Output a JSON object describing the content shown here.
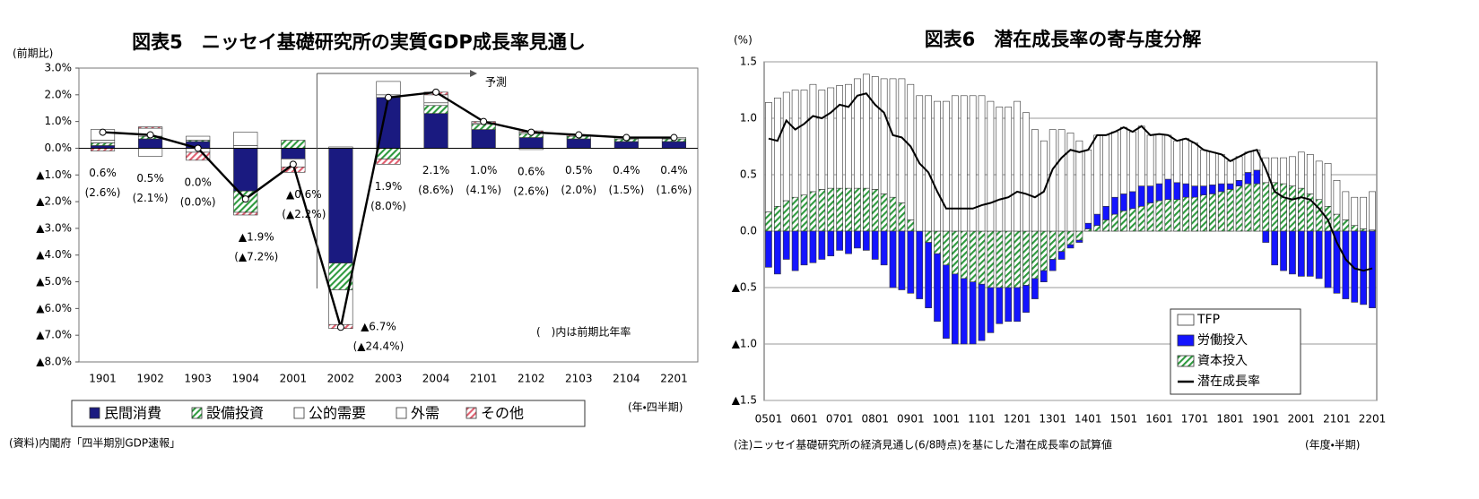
{
  "chart_data": [
    {
      "type": "bar",
      "stacked": true,
      "title": "図表5　ニッセイ基礎研究所の実質GDP成長率見通し",
      "y_label": "(前期比)",
      "x_label": "(年・四半期)",
      "annotation": "予測",
      "note": "(　)内は前期比年率",
      "source": "(資料)内閣府「四半期別GDP速報」",
      "categories": [
        "1901",
        "1902",
        "1903",
        "1904",
        "2001",
        "2002",
        "2003",
        "2004",
        "2101",
        "2102",
        "2103",
        "2104",
        "2201"
      ],
      "series": [
        {
          "name": "民間消費",
          "color": "#1a1a80",
          "values": [
            0.1,
            0.35,
            0.25,
            -1.6,
            -0.4,
            -4.3,
            1.9,
            1.3,
            0.7,
            0.4,
            0.35,
            0.25,
            0.25
          ]
        },
        {
          "name": "設備投資",
          "color": "#2e9a3e",
          "pattern": "hatch",
          "values": [
            0.1,
            0.1,
            0.05,
            -0.8,
            0.3,
            -1.0,
            -0.4,
            0.3,
            0.2,
            0.15,
            0.1,
            0.1,
            0.1
          ]
        },
        {
          "name": "公的需要",
          "color": "#ffffff",
          "values": [
            0.1,
            0.3,
            0.15,
            0.1,
            0.0,
            0.05,
            0.1,
            0.1,
            0.05,
            0.05,
            0.0,
            0.0,
            0.05
          ]
        },
        {
          "name": "外需",
          "color": "#ffffff",
          "values": [
            0.4,
            -0.3,
            -0.15,
            0.5,
            -0.3,
            -1.3,
            0.5,
            0.3,
            0.0,
            -0.05,
            0.0,
            0.05,
            0.0
          ]
        },
        {
          "name": "その他",
          "color": "#e06070",
          "pattern": "hatch",
          "values": [
            -0.1,
            0.05,
            -0.3,
            -0.1,
            -0.2,
            -0.15,
            -0.2,
            0.1,
            0.05,
            0.05,
            0.05,
            0.0,
            0.0
          ]
        }
      ],
      "line": {
        "color": "#000000",
        "values": [
          0.6,
          0.5,
          0.0,
          -1.9,
          -0.6,
          -6.7,
          1.9,
          2.1,
          1.0,
          0.6,
          0.5,
          0.4,
          0.4
        ],
        "value_labels": [
          "0.6%",
          "0.5%",
          "0.0%",
          "▲1.9%",
          "▲0.6%",
          "▲6.7%",
          "1.9%",
          "2.1%",
          "1.0%",
          "0.6%",
          "0.5%",
          "0.4%",
          "0.4%"
        ]
      },
      "annualized": {
        "values": [
          2.6,
          2.1,
          0.0,
          -7.2,
          -2.2,
          -24.4,
          8.0,
          8.6,
          4.1,
          2.6,
          2.0,
          1.5,
          1.6
        ],
        "value_labels": [
          "(2.6%)",
          "(2.1%)",
          "(0.0%)",
          "(▲7.2%)",
          "(▲2.2%)",
          "(▲24.4%)",
          "(8.0%)",
          "(8.6%)",
          "(4.1%)",
          "(2.6%)",
          "(2.0%)",
          "(1.5%)",
          "(1.6%)"
        ]
      },
      "ylim": [
        -8,
        3
      ],
      "yticks": [
        {
          "value": 3,
          "label": "3.0%"
        },
        {
          "value": 2,
          "label": "2.0%"
        },
        {
          "value": 1,
          "label": "1.0%"
        },
        {
          "value": 0,
          "label": "0.0%"
        },
        {
          "value": -1,
          "label": "▲1.0%"
        },
        {
          "value": -2,
          "label": "▲2.0%"
        },
        {
          "value": -3,
          "label": "▲3.0%"
        },
        {
          "value": -4,
          "label": "▲4.0%"
        },
        {
          "value": -5,
          "label": "▲5.0%"
        },
        {
          "value": -6,
          "label": "▲6.0%"
        },
        {
          "value": -7,
          "label": "▲7.0%"
        },
        {
          "value": -8,
          "label": "▲8.0%"
        }
      ],
      "grid": false,
      "legend": "bottom"
    },
    {
      "type": "bar",
      "stacked": true,
      "title": "図表6　潜在成長率の寄与度分解",
      "y_label": "(%)",
      "x_label": "(年度・半期)",
      "note": "(注)ニッセイ基礎研究所の経済見通し(6/8時点)を基にした潜在成長率の試算値",
      "categories": [
        "0501",
        null,
        null,
        null,
        "0601",
        null,
        null,
        null,
        "0701",
        null,
        null,
        null,
        "0801",
        null,
        null,
        null,
        "0901",
        null,
        null,
        null,
        "1001",
        null,
        null,
        null,
        "1101",
        null,
        null,
        null,
        "1201",
        null,
        null,
        null,
        "1301",
        null,
        null,
        null,
        "1401",
        null,
        null,
        null,
        "1501",
        null,
        null,
        null,
        "1601",
        null,
        null,
        null,
        "1701",
        null,
        null,
        null,
        "1801",
        null,
        null,
        null,
        "1901",
        null,
        null,
        null,
        "2001",
        null,
        null,
        null,
        "2101",
        null,
        null,
        null,
        "2201"
      ],
      "series": [
        {
          "name": "TFP",
          "color": "#ffffff",
          "values": [
            0.97,
            0.96,
            0.96,
            0.95,
            0.93,
            0.95,
            0.88,
            0.89,
            0.91,
            0.92,
            0.97,
            1.01,
            1.0,
            1.02,
            1.05,
            1.1,
            1.2,
            1.2,
            1.2,
            1.15,
            1.15,
            1.2,
            1.2,
            1.2,
            1.2,
            1.15,
            1.1,
            1.1,
            1.15,
            1.05,
            0.9,
            0.8,
            0.9,
            0.9,
            0.87,
            0.8,
            0.65,
            0.7,
            0.63,
            0.58,
            0.59,
            0.53,
            0.53,
            0.45,
            0.44,
            0.39,
            0.37,
            0.4,
            0.38,
            0.32,
            0.29,
            0.26,
            0.2,
            0.21,
            0.18,
            0.18,
            0.22,
            0.22,
            0.23,
            0.26,
            0.32,
            0.35,
            0.34,
            0.38,
            0.3,
            0.25,
            0.25,
            0.28,
            0.34
          ]
        },
        {
          "name": "労働投入",
          "color": "#1414ff",
          "values": [
            -0.32,
            -0.38,
            -0.25,
            -0.35,
            -0.3,
            -0.28,
            -0.25,
            -0.22,
            -0.17,
            -0.2,
            -0.15,
            -0.17,
            -0.25,
            -0.3,
            -0.5,
            -0.52,
            -0.55,
            -0.6,
            -0.58,
            -0.6,
            -0.65,
            -0.62,
            -0.58,
            -0.55,
            -0.5,
            -0.4,
            -0.32,
            -0.3,
            -0.3,
            -0.24,
            -0.18,
            -0.1,
            -0.1,
            -0.07,
            -0.03,
            -0.02,
            0.05,
            0.1,
            0.12,
            0.15,
            0.15,
            0.15,
            0.18,
            0.15,
            0.15,
            0.18,
            0.15,
            0.12,
            0.1,
            0.08,
            0.08,
            0.07,
            0.05,
            0.05,
            0.1,
            0.12,
            -0.1,
            -0.3,
            -0.35,
            -0.38,
            -0.4,
            -0.4,
            -0.42,
            -0.5,
            -0.55,
            -0.6,
            -0.63,
            -0.65,
            -0.68
          ]
        },
        {
          "name": "資本投入",
          "color": "#2e9a3e",
          "pattern": "hatch",
          "values": [
            0.17,
            0.22,
            0.27,
            0.3,
            0.32,
            0.35,
            0.37,
            0.38,
            0.38,
            0.38,
            0.38,
            0.38,
            0.37,
            0.33,
            0.3,
            0.25,
            0.1,
            0.0,
            -0.1,
            -0.2,
            -0.3,
            -0.38,
            -0.42,
            -0.45,
            -0.47,
            -0.5,
            -0.5,
            -0.5,
            -0.5,
            -0.48,
            -0.42,
            -0.35,
            -0.25,
            -0.18,
            -0.12,
            -0.08,
            0.02,
            0.05,
            0.1,
            0.15,
            0.18,
            0.2,
            0.22,
            0.25,
            0.27,
            0.28,
            0.28,
            0.3,
            0.3,
            0.32,
            0.33,
            0.35,
            0.37,
            0.4,
            0.42,
            0.42,
            0.43,
            0.43,
            0.42,
            0.4,
            0.38,
            0.33,
            0.28,
            0.22,
            0.15,
            0.1,
            0.05,
            0.02,
            0.01
          ]
        },
        {
          "name": "潜在成長率",
          "type": "line",
          "color": "#000000",
          "values": [
            0.82,
            0.8,
            0.98,
            0.9,
            0.95,
            1.02,
            1.0,
            1.05,
            1.12,
            1.1,
            1.2,
            1.22,
            1.12,
            1.05,
            0.85,
            0.83,
            0.75,
            0.6,
            0.52,
            0.35,
            0.2,
            0.2,
            0.2,
            0.2,
            0.23,
            0.25,
            0.28,
            0.3,
            0.35,
            0.33,
            0.3,
            0.35,
            0.55,
            0.65,
            0.72,
            0.7,
            0.72,
            0.85,
            0.85,
            0.88,
            0.92,
            0.88,
            0.93,
            0.85,
            0.86,
            0.85,
            0.8,
            0.82,
            0.78,
            0.72,
            0.7,
            0.68,
            0.62,
            0.66,
            0.7,
            0.72,
            0.55,
            0.35,
            0.3,
            0.28,
            0.3,
            0.28,
            0.2,
            0.1,
            -0.1,
            -0.25,
            -0.33,
            -0.35,
            -0.33
          ]
        }
      ],
      "ylim": [
        -1.5,
        1.5
      ],
      "yticks": [
        1.5,
        {
          "value": 1,
          "label": "1.0"
        },
        0.5,
        {
          "value": 0,
          "label": "0.0"
        },
        {
          "value": -0.5,
          "label": "▲0.5"
        },
        {
          "value": -1,
          "label": "▲1.0"
        },
        {
          "value": -1.5,
          "label": "▲1.5"
        }
      ],
      "grid": true,
      "legend": "lower right"
    }
  ]
}
